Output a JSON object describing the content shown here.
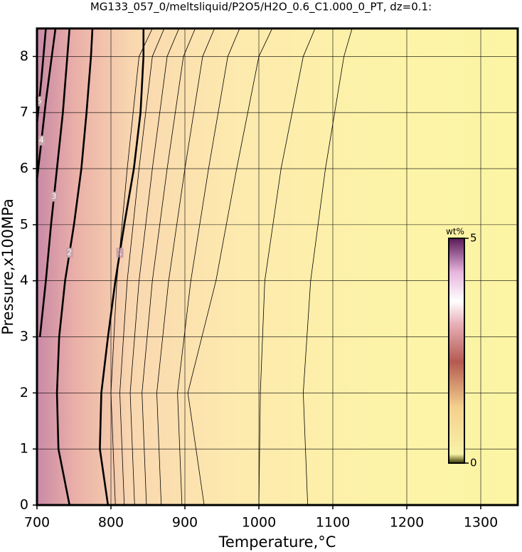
{
  "chart_data": {
    "type": "contour",
    "title": "MG133_057_0/meltsliquid/P2O5/H2O_0.6_C1.000_0_PT, dz=0.1:",
    "x_label": "Temperature,°C",
    "y_label": "Pressure,x100MPa",
    "xlim": [
      700,
      1350
    ],
    "xticks": [
      700,
      800,
      900,
      1000,
      1100,
      1200,
      1300
    ],
    "ylim": [
      0,
      8.5
    ],
    "yticks": [
      0,
      1,
      2,
      3,
      4,
      5,
      6,
      7,
      8
    ],
    "grid": true,
    "colorbar": {
      "label": "wt%",
      "lim": [
        0,
        5
      ],
      "ticks": [
        0,
        5
      ]
    },
    "contours": [
      {
        "level": 5,
        "x": [
          700,
          706,
          712
        ],
        "y": [
          6.8,
          7.6,
          8.5
        ]
      },
      {
        "level": 4,
        "x": [
          700,
          712,
          725
        ],
        "y": [
          5.8,
          7.2,
          8.5
        ]
      },
      {
        "level": 3,
        "x": [
          704,
          708,
          712,
          719,
          727,
          735,
          741,
          744
        ],
        "y": [
          3.0,
          3.5,
          4,
          5,
          6,
          7,
          8,
          8.5
        ]
      },
      {
        "level": 2,
        "x": [
          744,
          729,
          727,
          730,
          738,
          750,
          760,
          767,
          773,
          775
        ],
        "y": [
          0,
          1,
          2,
          3,
          4,
          5,
          6,
          7,
          8,
          8.5
        ]
      },
      {
        "level": 1,
        "x": [
          796,
          785,
          787,
          796,
          806,
          818,
          831,
          840,
          844,
          844
        ],
        "y": [
          0,
          1,
          2,
          3,
          4,
          5,
          6,
          7,
          8,
          8.5
        ]
      },
      {
        "level": 0.9,
        "x": [
          806,
          800,
          808,
          822,
          838,
          856
        ],
        "y": [
          0,
          2,
          4,
          6,
          8,
          8.5
        ]
      },
      {
        "level": 0.8,
        "x": [
          818,
          812,
          822,
          838,
          856,
          872
        ],
        "y": [
          0,
          2,
          4,
          6,
          8,
          8.5
        ]
      },
      {
        "level": 0.7,
        "x": [
          832,
          826,
          838,
          856,
          876,
          892
        ],
        "y": [
          0,
          2,
          4,
          6,
          8,
          8.5
        ]
      },
      {
        "level": 0.6,
        "x": [
          848,
          842,
          856,
          876,
          898,
          914
        ],
        "y": [
          0,
          2,
          4,
          6,
          8,
          8.5
        ]
      },
      {
        "level": 0.5,
        "x": [
          868,
          862,
          878,
          900,
          924,
          940
        ],
        "y": [
          0,
          2,
          4,
          6,
          8,
          8.5
        ]
      },
      {
        "level": 0.4,
        "x": [
          896,
          890,
          908,
          932,
          958,
          974
        ],
        "y": [
          0,
          2,
          4,
          6,
          8,
          8.5
        ]
      },
      {
        "level": 0.3,
        "x": [
          926,
          904,
          942,
          970,
          1000,
          1018
        ],
        "y": [
          0,
          2,
          4,
          6,
          8,
          8.5
        ]
      },
      {
        "level": 0.2,
        "x": [
          1000,
          1002,
          1008,
          1030,
          1060,
          1076
        ],
        "y": [
          0,
          2,
          4,
          6,
          8,
          8.5
        ]
      },
      {
        "level": 0.1,
        "x": [
          1066,
          1060,
          1070,
          1090,
          1115,
          1126
        ],
        "y": [
          0,
          2,
          4,
          6,
          8,
          8.5
        ]
      }
    ]
  }
}
